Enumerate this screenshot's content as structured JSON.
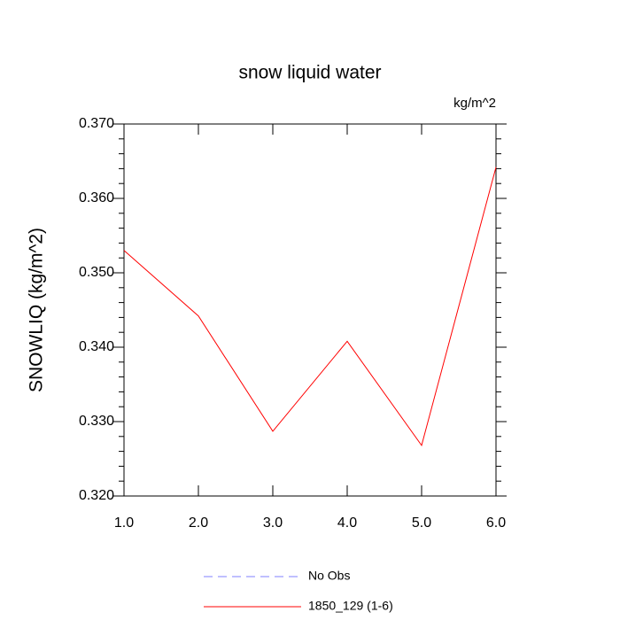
{
  "chart_data": {
    "type": "line",
    "title": "snow liquid water",
    "units_label": "kg/m^2",
    "y_label": "SNOWLIQ  (kg/m^2)",
    "x": [
      1,
      2,
      3,
      4,
      5,
      6
    ],
    "xlim": [
      1,
      6
    ],
    "xticks": [
      {
        "value": 1,
        "label": "1.0"
      },
      {
        "value": 2,
        "label": "2.0"
      },
      {
        "value": 3,
        "label": "3.0"
      },
      {
        "value": 4,
        "label": "4.0"
      },
      {
        "value": 5,
        "label": "5.0"
      },
      {
        "value": 6,
        "label": "6.0"
      }
    ],
    "ylim": [
      0.32,
      0.37
    ],
    "yticks": [
      {
        "value": 0.32,
        "label": "0.320"
      },
      {
        "value": 0.33,
        "label": "0.330"
      },
      {
        "value": 0.34,
        "label": "0.340"
      },
      {
        "value": 0.35,
        "label": "0.350"
      },
      {
        "value": 0.36,
        "label": "0.360"
      },
      {
        "value": 0.37,
        "label": "0.370"
      }
    ],
    "series": [
      {
        "name": "No Obs",
        "color": "#8080ff",
        "dashed": true,
        "values": [
          null,
          null,
          null,
          null,
          null,
          null
        ]
      },
      {
        "name": "1850_129 (1-6)",
        "color": "#ff0000",
        "dashed": false,
        "values": [
          0.353,
          0.3442,
          0.3287,
          0.3408,
          0.3268,
          0.3642
        ]
      }
    ]
  }
}
